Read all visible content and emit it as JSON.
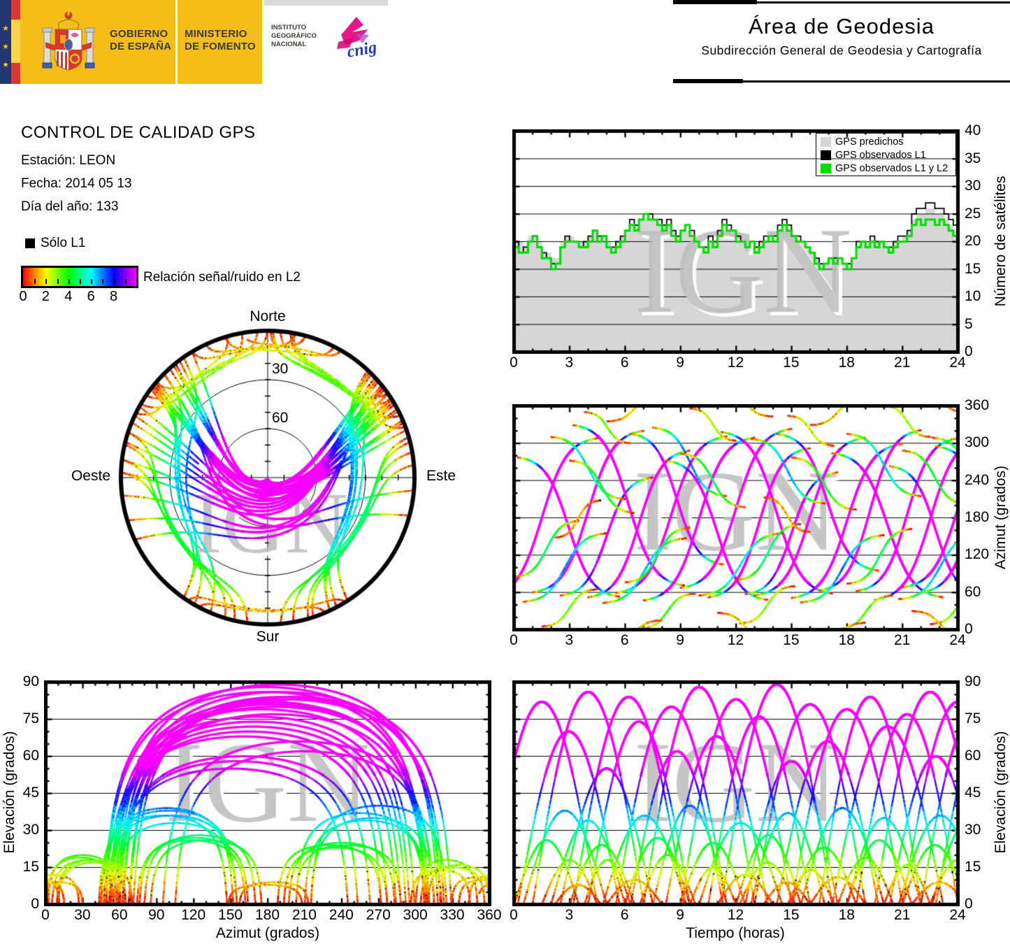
{
  "page": {
    "watermark": "IGN"
  },
  "header": {
    "gobierno_line1": "GOBIERNO",
    "gobierno_line2": "DE ESPAÑA",
    "ministerio_line1": "MINISTERIO",
    "ministerio_line2": "DE FOMENTO",
    "instituto_line1": "INSTITUTO",
    "instituto_line2": "GEOGRÁFICO",
    "instituto_line3": "NACIONAL",
    "cnig_text": "cnig",
    "area_title": "Área de Geodesia",
    "area_subtitle": "Subdirección General de Geodesia y Cartografía",
    "colors": {
      "yellow": "#f5bd17",
      "navy": "#253570",
      "flag_red": "#d6392f",
      "flag_yellow": "#fcd34d",
      "cnig_pink": "#e6007e",
      "cnig_blue": "#1f3fae"
    }
  },
  "info": {
    "title": "CONTROL DE CALIDAD GPS",
    "station": "Estación: LEON",
    "date": "Fecha: 2014 05 13",
    "doy": "Día del año: 133"
  },
  "snr_legend": {
    "solo_l1": "Sólo L1",
    "label": "Relación señal/ruido en L2",
    "ticks": [
      0,
      2,
      4,
      6,
      8
    ],
    "gradient": [
      "#ff0000",
      "#ffff00",
      "#00ff00",
      "#00ffff",
      "#0000ff",
      "#ff00ff"
    ]
  },
  "skyplot": {
    "north": "Norte",
    "south": "Sur",
    "west": "Oeste",
    "east": "Este",
    "ring_labels": [
      "30",
      "60"
    ]
  },
  "charts": {
    "sats": {
      "ylabel": "Número de satélites",
      "x_ticks": [
        0,
        3,
        6,
        9,
        12,
        15,
        18,
        21,
        24
      ],
      "y_ticks": [
        0,
        5,
        10,
        15,
        20,
        25,
        30,
        35,
        40
      ],
      "legend": [
        {
          "label": "GPS predichos",
          "color": "#d6d6d6"
        },
        {
          "label": "GPS observados L1",
          "color": "#000000"
        },
        {
          "label": "GPS observados L1 y L2",
          "color": "#00dd00"
        }
      ]
    },
    "az": {
      "ylabel": "Azimut (grados)",
      "x_ticks": [
        0,
        3,
        6,
        9,
        12,
        15,
        18,
        21,
        24
      ],
      "y_ticks": [
        0,
        60,
        120,
        180,
        240,
        300,
        360
      ]
    },
    "elaz": {
      "ylabel": "Elevación (grados)",
      "xlabel": "Azimut (grados)",
      "x_ticks": [
        0,
        30,
        60,
        90,
        120,
        150,
        180,
        210,
        240,
        270,
        300,
        330,
        360
      ],
      "y_ticks": [
        0,
        15,
        30,
        45,
        60,
        75,
        90
      ]
    },
    "elt": {
      "ylabel": "Elevación (grados)",
      "xlabel": "Tiempo (horas)",
      "x_ticks": [
        0,
        3,
        6,
        9,
        12,
        15,
        18,
        21,
        24
      ],
      "y_ticks": [
        0,
        15,
        30,
        45,
        60,
        75,
        90
      ]
    }
  },
  "chart_data": {
    "satellites_count": {
      "type": "line-step",
      "xlabel_units": "horas",
      "xlim": [
        0,
        24
      ],
      "ylim": [
        0,
        40
      ],
      "x_start": 0,
      "x_step": 0.25,
      "series": [
        {
          "name": "GPS predichos",
          "color": "#d6d6d6",
          "fill": true,
          "values": [
            20,
            20,
            19,
            21,
            21,
            20,
            18,
            18,
            17,
            17,
            20,
            21,
            21,
            20,
            20,
            20,
            21,
            22,
            21,
            21,
            20,
            19,
            20,
            21,
            22,
            23,
            23,
            24,
            24,
            24,
            24,
            23,
            23,
            23,
            22,
            21,
            22,
            22,
            21,
            20,
            20,
            19,
            20,
            20,
            21,
            22,
            22,
            21,
            20,
            20,
            20,
            20,
            19,
            20,
            20,
            21,
            21,
            22,
            23,
            22,
            21,
            20,
            20,
            19,
            18,
            17,
            16,
            16,
            17,
            17,
            17,
            16,
            16,
            17,
            19,
            20,
            20,
            20,
            20,
            20,
            19,
            19,
            20,
            20,
            21,
            22,
            24,
            25,
            25,
            26,
            26,
            25,
            25,
            24,
            23,
            22,
            21
          ]
        },
        {
          "name": "GPS observados L1",
          "color": "#000000",
          "values": [
            20,
            18,
            19,
            20,
            21,
            19,
            18,
            17,
            16,
            16,
            19,
            21,
            20,
            20,
            19,
            20,
            21,
            22,
            21,
            21,
            19,
            19,
            20,
            21,
            22,
            24,
            23,
            24,
            25,
            25,
            24,
            24,
            23,
            24,
            22,
            21,
            22,
            23,
            22,
            20,
            19,
            19,
            21,
            20,
            22,
            24,
            23,
            22,
            21,
            20,
            19,
            20,
            19,
            20,
            21,
            21,
            21,
            23,
            24,
            23,
            21,
            21,
            20,
            19,
            18,
            17,
            16,
            16,
            17,
            17,
            17,
            16,
            16,
            17,
            20,
            20,
            19,
            21,
            20,
            20,
            19,
            19,
            20,
            21,
            21,
            22,
            25,
            26,
            26,
            27,
            27,
            26,
            26,
            25,
            24,
            23,
            21
          ]
        },
        {
          "name": "GPS observados L1 y L2",
          "color": "#00dd00",
          "values": [
            19,
            18,
            18,
            20,
            21,
            19,
            17,
            17,
            15,
            16,
            19,
            20,
            20,
            20,
            19,
            19,
            20,
            22,
            20,
            21,
            19,
            18,
            19,
            20,
            22,
            23,
            22,
            24,
            25,
            24,
            24,
            23,
            22,
            23,
            21,
            20,
            22,
            23,
            21,
            20,
            19,
            18,
            20,
            19,
            21,
            23,
            22,
            22,
            20,
            20,
            19,
            20,
            18,
            19,
            20,
            21,
            20,
            22,
            23,
            22,
            21,
            20,
            20,
            19,
            18,
            16,
            15,
            16,
            17,
            16,
            17,
            16,
            15,
            17,
            19,
            20,
            19,
            20,
            19,
            20,
            19,
            18,
            19,
            20,
            20,
            21,
            23,
            24,
            23,
            24,
            24,
            23,
            24,
            23,
            22,
            21,
            20
          ]
        }
      ]
    },
    "tracks": {
      "type": "scatter-tracks",
      "note": "Approximated GPS satellite passes; fields per pass: [t0_h, duration_h, culmination_azimuth_deg, azimuth_half_sweep_deg, max_elevation_deg, direction]",
      "color_mapping": "point hue = 30 x SNR_L2 (scale 0-10), SNR approx elevation/5.5; isolated black dots = only-L1 points",
      "passes": [
        [
          -1.5,
          6,
          180,
          128,
          82,
          1
        ],
        [
          0.2,
          5.5,
          165,
          112,
          70,
          -1
        ],
        [
          1.0,
          6,
          190,
          130,
          86,
          1
        ],
        [
          2.5,
          5,
          150,
          95,
          55,
          1
        ],
        [
          3.2,
          6,
          200,
          129,
          84,
          -1
        ],
        [
          4.0,
          5.5,
          170,
          118,
          74,
          1
        ],
        [
          5.5,
          6,
          185,
          126,
          80,
          1
        ],
        [
          6.3,
          5,
          210,
          105,
          62,
          -1
        ],
        [
          7.0,
          6,
          178,
          131,
          88,
          1
        ],
        [
          8.2,
          5.5,
          160,
          112,
          68,
          -1
        ],
        [
          9.0,
          6,
          195,
          128,
          83,
          1
        ],
        [
          10.5,
          5.5,
          172,
          120,
          76,
          1
        ],
        [
          11.2,
          6,
          188,
          130,
          89,
          -1
        ],
        [
          12.5,
          5,
          155,
          98,
          58,
          1
        ],
        [
          13.0,
          6,
          182,
          127,
          81,
          1
        ],
        [
          14.2,
          5.5,
          205,
          110,
          66,
          -1
        ],
        [
          15.0,
          6,
          175,
          124,
          79,
          1
        ],
        [
          16.5,
          5.5,
          192,
          129,
          84,
          1
        ],
        [
          17.2,
          6,
          168,
          116,
          72,
          -1
        ],
        [
          18.5,
          5.5,
          185,
          123,
          77,
          1
        ],
        [
          19.5,
          6,
          178,
          130,
          86,
          1
        ],
        [
          20.3,
          5,
          160,
          103,
          60,
          -1
        ],
        [
          21.0,
          6,
          195,
          127,
          82,
          1
        ],
        [
          22.0,
          5.5,
          180,
          120,
          75,
          1
        ],
        [
          22.8,
          6,
          170,
          125,
          80,
          -1
        ],
        [
          0.5,
          4.5,
          100,
          55,
          38,
          1
        ],
        [
          2.0,
          4,
          260,
          50,
          34,
          -1
        ],
        [
          4.8,
          4.5,
          95,
          52,
          36,
          1
        ],
        [
          7.5,
          4,
          270,
          55,
          40,
          -1
        ],
        [
          10.0,
          4.5,
          105,
          50,
          33,
          1
        ],
        [
          12.8,
          4,
          255,
          52,
          37,
          -1
        ],
        [
          15.5,
          4.5,
          98,
          54,
          39,
          1
        ],
        [
          18.0,
          4,
          265,
          50,
          35,
          -1
        ],
        [
          20.8,
          4.5,
          102,
          53,
          36,
          1
        ],
        [
          22.6,
          4,
          258,
          51,
          34,
          -1
        ],
        [
          1.5,
          3,
          35,
          30,
          18,
          1
        ],
        [
          3.8,
          2.5,
          325,
          25,
          18,
          -1
        ],
        [
          6.8,
          3,
          30,
          28,
          20,
          1
        ],
        [
          9.5,
          2.5,
          330,
          26,
          15,
          -1
        ],
        [
          12.2,
          3,
          40,
          30,
          17,
          1
        ],
        [
          14.8,
          2.5,
          320,
          24,
          14,
          -1
        ],
        [
          17.5,
          3,
          28,
          27,
          19,
          1
        ],
        [
          20.0,
          2.5,
          335,
          25,
          16,
          -1
        ],
        [
          22.5,
          3,
          38,
          29,
          18,
          1
        ],
        [
          5.0,
          3,
          355,
          20,
          10,
          1
        ],
        [
          11.0,
          3,
          5,
          22,
          12,
          -1
        ],
        [
          16.0,
          3,
          350,
          21,
          11,
          1
        ],
        [
          21.5,
          3,
          10,
          20,
          9,
          -1
        ],
        [
          0.0,
          3.5,
          130,
          45,
          26,
          1
        ],
        [
          3.0,
          3.5,
          230,
          42,
          24,
          -1
        ],
        [
          6.0,
          3.5,
          120,
          44,
          27,
          1
        ],
        [
          9.0,
          3.5,
          240,
          43,
          25,
          -1
        ],
        [
          12.0,
          3.5,
          125,
          45,
          28,
          1
        ],
        [
          15.0,
          3.5,
          235,
          42,
          23,
          -1
        ],
        [
          18.0,
          3.5,
          118,
          44,
          26,
          1
        ],
        [
          21.0,
          3.5,
          245,
          43,
          24,
          -1
        ],
        [
          2.2,
          2.5,
          178,
          30,
          8,
          1
        ],
        [
          13.5,
          2.5,
          185,
          28,
          9,
          -1
        ]
      ]
    }
  }
}
